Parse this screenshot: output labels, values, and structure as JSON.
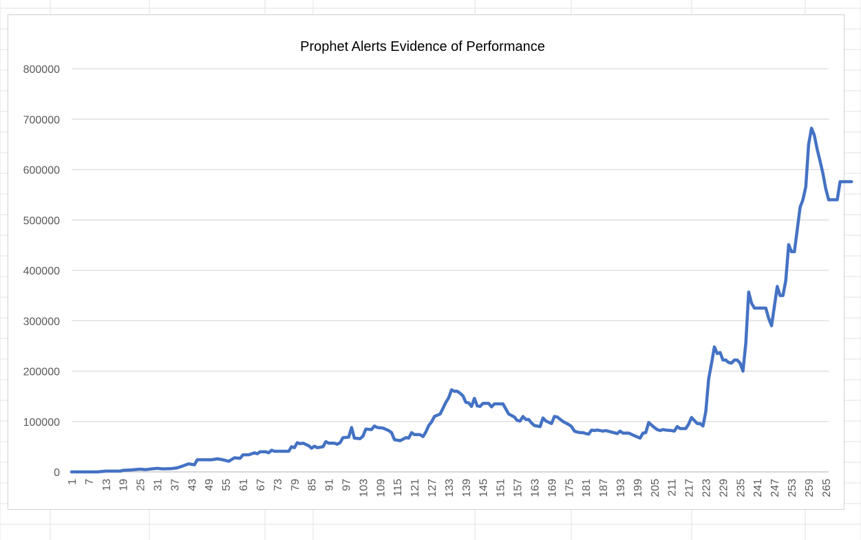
{
  "chart_data": {
    "type": "line",
    "title": "Prophet Alerts Evidence of Performance",
    "xlabel": "",
    "ylabel": "",
    "ylim": [
      0,
      800000
    ],
    "yticks": [
      0,
      100000,
      200000,
      300000,
      400000,
      500000,
      600000,
      700000,
      800000
    ],
    "ytick_labels": [
      "0",
      "100000",
      "200000",
      "300000",
      "400000",
      "500000",
      "600000",
      "700000",
      "800000"
    ],
    "xlim": [
      1,
      266
    ],
    "xtick_labels": [
      "1",
      "7",
      "13",
      "19",
      "25",
      "31",
      "37",
      "43",
      "49",
      "55",
      "61",
      "67",
      "73",
      "79",
      "85",
      "91",
      "97",
      "103",
      "109",
      "115",
      "121",
      "127",
      "133",
      "139",
      "145",
      "151",
      "157",
      "163",
      "169",
      "175",
      "181",
      "187",
      "193",
      "199",
      "205",
      "211",
      "217",
      "223",
      "229",
      "235",
      "241",
      "247",
      "253",
      "259",
      "265"
    ],
    "grid": true,
    "legend": "none",
    "series": [
      {
        "color": "#4472C4",
        "points": [
          [
            1,
            0
          ],
          [
            5,
            0
          ],
          [
            10,
            0
          ],
          [
            13,
            1500
          ],
          [
            18,
            1500
          ],
          [
            19,
            3000
          ],
          [
            22,
            4000
          ],
          [
            25,
            5500
          ],
          [
            27,
            4500
          ],
          [
            29,
            6000
          ],
          [
            31,
            7000
          ],
          [
            33,
            6000
          ],
          [
            36,
            6500
          ],
          [
            38,
            8000
          ],
          [
            40,
            12000
          ],
          [
            42,
            16000
          ],
          [
            44,
            14000
          ],
          [
            45,
            24000
          ],
          [
            50,
            24000
          ],
          [
            52,
            26000
          ],
          [
            54,
            24000
          ],
          [
            56,
            21000
          ],
          [
            58,
            28000
          ],
          [
            60,
            27000
          ],
          [
            61,
            34000
          ],
          [
            63,
            34000
          ],
          [
            65,
            38000
          ],
          [
            66,
            36000
          ],
          [
            67,
            40000
          ],
          [
            69,
            40000
          ],
          [
            70,
            38000
          ],
          [
            71,
            43000
          ],
          [
            72,
            41000
          ],
          [
            77,
            41000
          ],
          [
            78,
            50000
          ],
          [
            79,
            48000
          ],
          [
            80,
            58000
          ],
          [
            81,
            56000
          ],
          [
            82,
            57000
          ],
          [
            84,
            52000
          ],
          [
            85,
            47000
          ],
          [
            86,
            51000
          ],
          [
            87,
            48000
          ],
          [
            89,
            50000
          ],
          [
            90,
            60000
          ],
          [
            91,
            57000
          ],
          [
            93,
            57000
          ],
          [
            94,
            55000
          ],
          [
            95,
            58000
          ],
          [
            96,
            68000
          ],
          [
            98,
            69000
          ],
          [
            99,
            88000
          ],
          [
            100,
            67000
          ],
          [
            102,
            66000
          ],
          [
            103,
            71000
          ],
          [
            104,
            85000
          ],
          [
            106,
            84000
          ],
          [
            107,
            91000
          ],
          [
            108,
            88000
          ],
          [
            110,
            87000
          ],
          [
            112,
            82000
          ],
          [
            113,
            78000
          ],
          [
            114,
            64000
          ],
          [
            116,
            62000
          ],
          [
            118,
            68000
          ],
          [
            119,
            67000
          ],
          [
            120,
            78000
          ],
          [
            121,
            74000
          ],
          [
            123,
            74000
          ],
          [
            124,
            70000
          ],
          [
            125,
            79000
          ],
          [
            126,
            92000
          ],
          [
            127,
            99000
          ],
          [
            128,
            110000
          ],
          [
            130,
            115000
          ],
          [
            131,
            126000
          ],
          [
            132,
            138000
          ],
          [
            133,
            147000
          ],
          [
            134,
            163000
          ],
          [
            135,
            160000
          ],
          [
            136,
            160000
          ],
          [
            137,
            156000
          ],
          [
            138,
            151000
          ],
          [
            139,
            138000
          ],
          [
            140,
            137000
          ],
          [
            141,
            130000
          ],
          [
            142,
            146000
          ],
          [
            143,
            131000
          ],
          [
            144,
            130000
          ],
          [
            145,
            136000
          ],
          [
            147,
            136000
          ],
          [
            148,
            129000
          ],
          [
            149,
            135000
          ],
          [
            152,
            135000
          ],
          [
            153,
            125000
          ],
          [
            154,
            115000
          ],
          [
            156,
            109000
          ],
          [
            157,
            102000
          ],
          [
            158,
            101000
          ],
          [
            159,
            110000
          ],
          [
            160,
            104000
          ],
          [
            161,
            104000
          ],
          [
            162,
            97000
          ],
          [
            163,
            92000
          ],
          [
            165,
            90000
          ],
          [
            166,
            107000
          ],
          [
            167,
            101000
          ],
          [
            169,
            96000
          ],
          [
            170,
            110000
          ],
          [
            171,
            109000
          ],
          [
            173,
            100000
          ],
          [
            175,
            94000
          ],
          [
            176,
            90000
          ],
          [
            177,
            81000
          ],
          [
            178,
            79000
          ],
          [
            179,
            78000
          ],
          [
            180,
            78000
          ],
          [
            181,
            76000
          ],
          [
            182,
            75000
          ],
          [
            183,
            83000
          ],
          [
            184,
            82000
          ],
          [
            185,
            83000
          ],
          [
            187,
            81000
          ],
          [
            188,
            82000
          ],
          [
            190,
            79000
          ],
          [
            192,
            76000
          ],
          [
            193,
            81000
          ],
          [
            194,
            77000
          ],
          [
            196,
            77000
          ],
          [
            198,
            72000
          ],
          [
            200,
            67000
          ],
          [
            201,
            77000
          ],
          [
            202,
            78000
          ],
          [
            203,
            98000
          ],
          [
            204,
            93000
          ],
          [
            205,
            88000
          ],
          [
            206,
            84000
          ],
          [
            207,
            82000
          ],
          [
            208,
            84000
          ],
          [
            209,
            83000
          ],
          [
            211,
            82000
          ],
          [
            212,
            81000
          ],
          [
            213,
            90000
          ],
          [
            214,
            86000
          ],
          [
            216,
            86000
          ],
          [
            217,
            95000
          ],
          [
            218,
            108000
          ],
          [
            219,
            102000
          ],
          [
            220,
            96000
          ],
          [
            221,
            96000
          ],
          [
            222,
            91000
          ],
          [
            223,
            120000
          ],
          [
            224,
            185000
          ],
          [
            225,
            215000
          ],
          [
            226,
            248000
          ],
          [
            227,
            235000
          ],
          [
            228,
            237000
          ],
          [
            229,
            222000
          ],
          [
            230,
            222000
          ],
          [
            231,
            217000
          ],
          [
            232,
            216000
          ],
          [
            233,
            222000
          ],
          [
            234,
            222000
          ],
          [
            235,
            216000
          ],
          [
            236,
            200000
          ],
          [
            237,
            255000
          ],
          [
            238,
            357000
          ],
          [
            239,
            335000
          ],
          [
            240,
            325000
          ],
          [
            241,
            325000
          ],
          [
            242,
            325000
          ],
          [
            243,
            325000
          ],
          [
            244,
            325000
          ],
          [
            245,
            305000
          ],
          [
            246,
            290000
          ],
          [
            247,
            328000
          ],
          [
            248,
            368000
          ],
          [
            249,
            350000
          ],
          [
            250,
            350000
          ],
          [
            251,
            380000
          ],
          [
            252,
            451000
          ],
          [
            253,
            437000
          ],
          [
            254,
            437000
          ],
          [
            255,
            480000
          ],
          [
            256,
            525000
          ],
          [
            257,
            540000
          ],
          [
            258,
            566000
          ],
          [
            259,
            650000
          ],
          [
            260,
            682000
          ],
          [
            261,
            668000
          ],
          [
            262,
            640000
          ],
          [
            263,
            617000
          ],
          [
            264,
            592000
          ],
          [
            265,
            562000
          ],
          [
            266,
            540000
          ],
          [
            267,
            540000
          ],
          [
            268,
            540000
          ],
          [
            269,
            540000
          ],
          [
            270,
            576000
          ],
          [
            271,
            576000
          ],
          [
            272,
            576000
          ],
          [
            273,
            576000
          ],
          [
            274,
            576000
          ]
        ]
      }
    ]
  }
}
